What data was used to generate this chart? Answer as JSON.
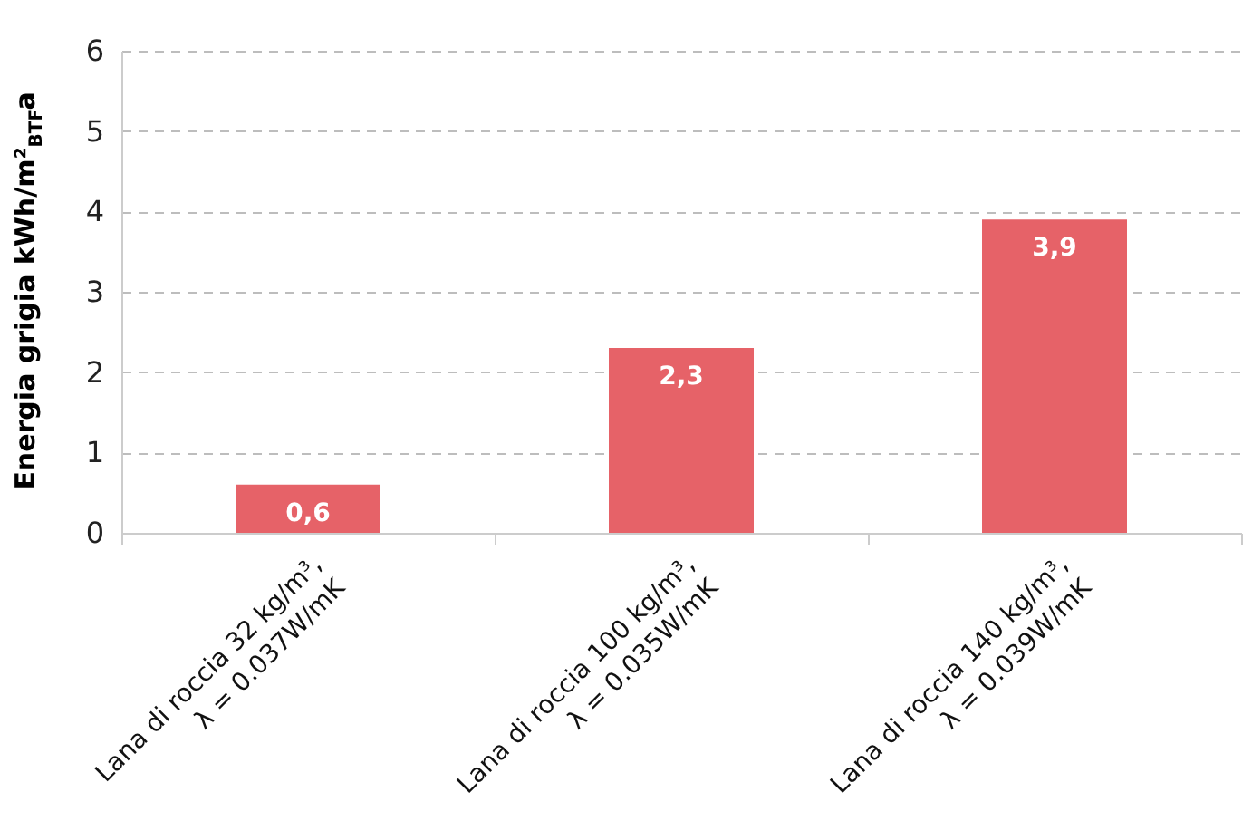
{
  "chart_data": {
    "type": "bar",
    "ylabel": "Energia grigia kWh/m²$_{BTF}$a",
    "categories": [
      "Lana di roccia 32 kg/m³,\nλ = 0.037W/mK",
      "Lana di roccia 100 kg/m³,\nλ = 0.035W/mK",
      "Lana di roccia 140 kg/m³,\nλ = 0.039W/mK"
    ],
    "values": [
      0.6,
      2.3,
      3.9
    ],
    "value_labels": [
      "0,6",
      "2,3",
      "3,9"
    ],
    "color": "#e66268",
    "ylim": [
      0,
      6
    ],
    "yticks": [
      0,
      1,
      2,
      3,
      4,
      5,
      6
    ],
    "grid": "y"
  }
}
